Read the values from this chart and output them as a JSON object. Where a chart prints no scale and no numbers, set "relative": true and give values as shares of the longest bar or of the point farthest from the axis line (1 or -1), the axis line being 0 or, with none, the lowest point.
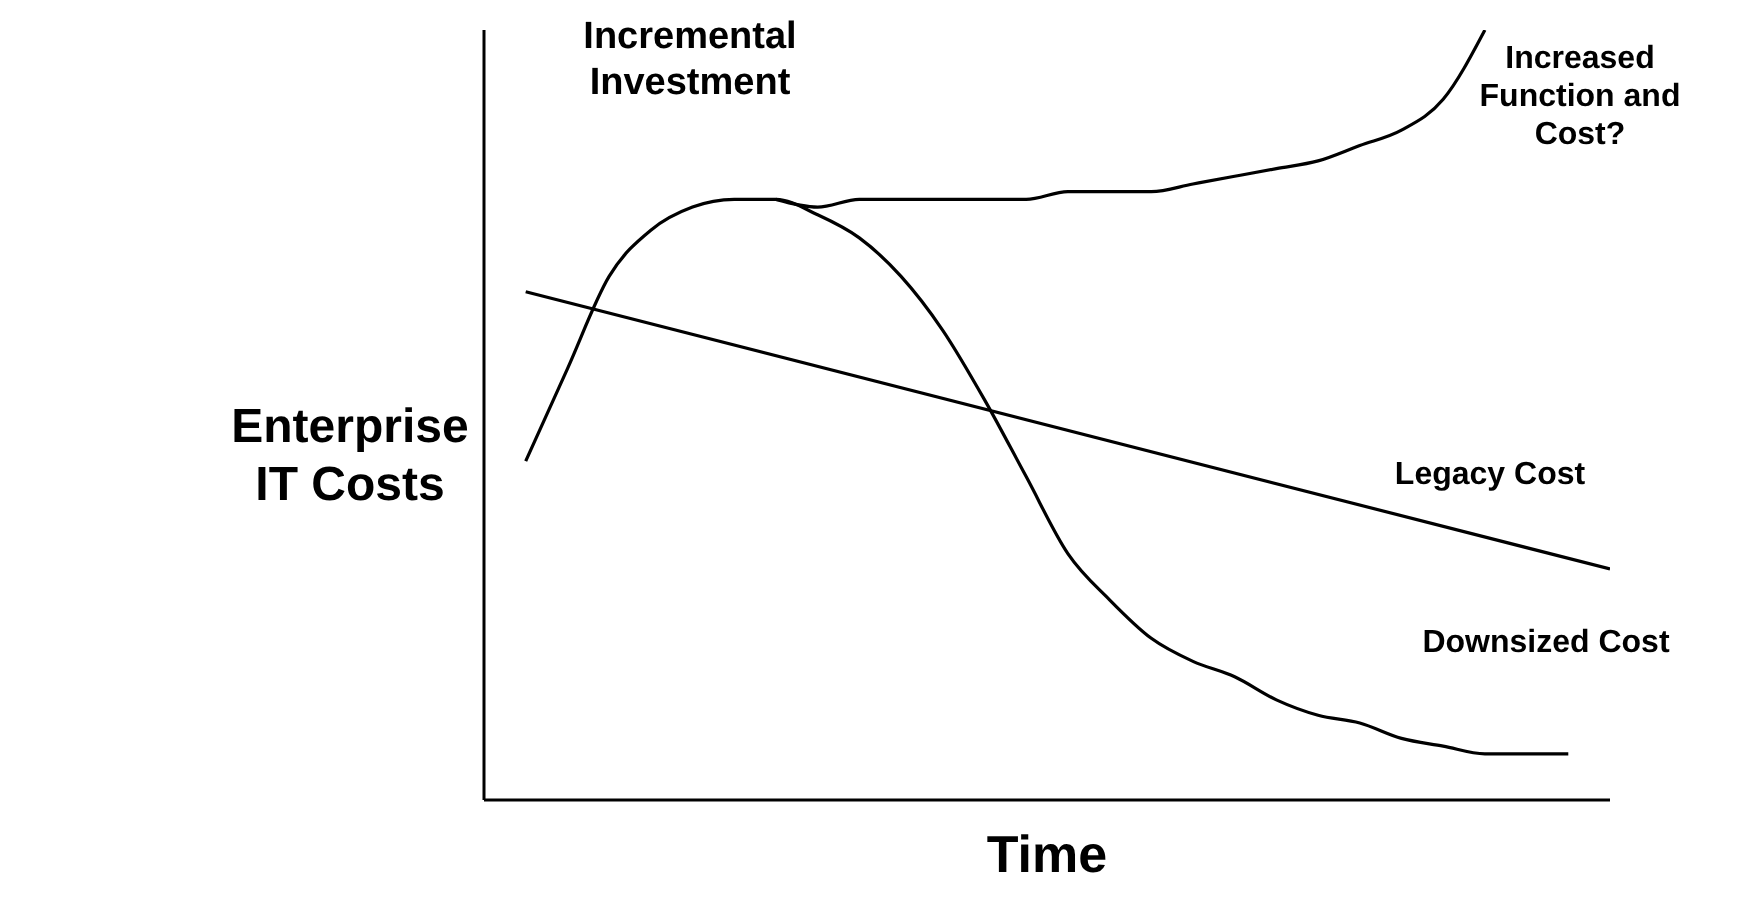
{
  "chart_data": {
    "type": "line",
    "relative": true,
    "xlabel": "Time",
    "ylabel": "Enterprise IT Costs",
    "annotations": [
      "Incremental Investment"
    ],
    "legend": false,
    "grid": false,
    "marker": "none",
    "line_style": "solid",
    "categories": [
      null,
      null,
      null,
      null,
      null,
      null,
      null,
      null,
      null,
      null,
      null,
      null,
      null,
      null,
      null,
      null,
      null,
      null,
      null,
      null,
      null,
      null,
      null,
      null,
      null,
      null,
      null,
      null
    ],
    "series": [
      {
        "name": "Downsized Cost",
        "color": "#000000",
        "values": [
          null,
          0.44,
          0.56,
          0.68,
          0.74,
          0.77,
          0.78,
          0.78,
          0.76,
          0.73,
          0.68,
          0.61,
          0.52,
          0.42,
          0.32,
          0.26,
          0.21,
          0.18,
          0.16,
          0.13,
          0.11,
          0.1,
          0.08,
          0.07,
          0.06,
          0.06,
          0.06,
          null
        ]
      },
      {
        "name": "Increased Function and Cost?",
        "color": "#000000",
        "values": [
          null,
          null,
          null,
          null,
          null,
          null,
          null,
          0.78,
          0.77,
          0.78,
          0.78,
          0.78,
          0.78,
          0.78,
          0.79,
          0.79,
          0.79,
          0.8,
          0.81,
          0.82,
          0.83,
          0.85,
          0.87,
          0.91,
          1.0,
          null,
          null,
          null
        ]
      },
      {
        "name": "Legacy Cost",
        "color": "#000000",
        "values": [
          null,
          0.66,
          null,
          null,
          null,
          null,
          null,
          null,
          null,
          null,
          null,
          null,
          null,
          null,
          null,
          null,
          null,
          null,
          null,
          null,
          null,
          null,
          null,
          null,
          null,
          null,
          null,
          0.3
        ]
      }
    ]
  }
}
